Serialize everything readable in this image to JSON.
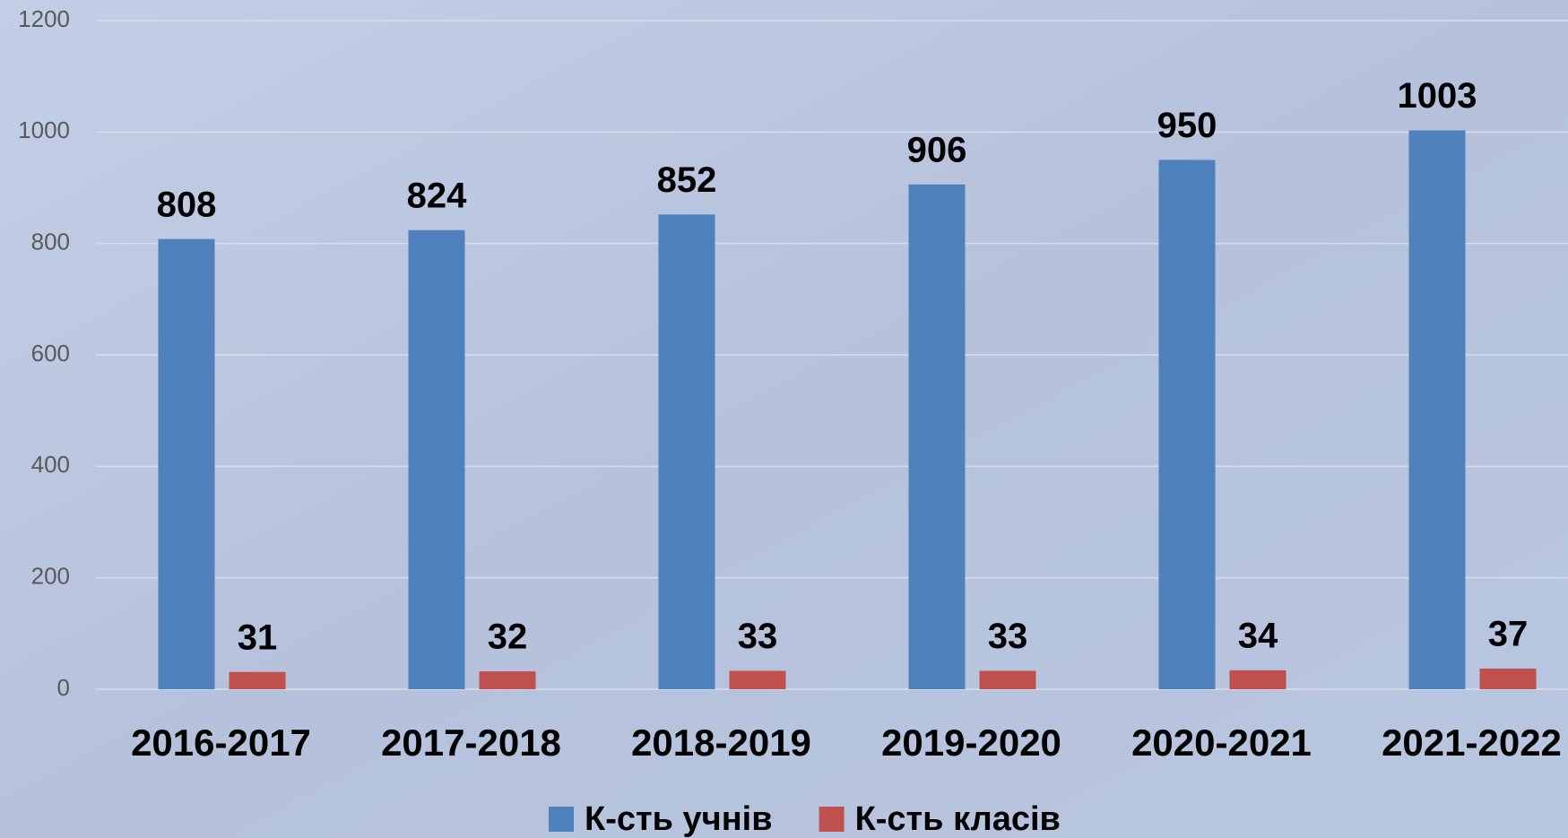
{
  "chart_data": {
    "type": "bar",
    "categories": [
      "2016-2017",
      "2017-2018",
      "2018-2019",
      "2019-2020",
      "2020-2021",
      "2021-2022"
    ],
    "series": [
      {
        "name": "К-сть учнів",
        "color": "#4f81bd",
        "values": [
          808,
          824,
          852,
          906,
          950,
          1003
        ]
      },
      {
        "name": "К-сть класів",
        "color": "#c0504d",
        "values": [
          31,
          32,
          33,
          33,
          34,
          37
        ]
      }
    ],
    "ylim": [
      0,
      1200
    ],
    "yticks": [
      0,
      200,
      400,
      600,
      800,
      1000,
      1200
    ],
    "grid": true,
    "legend": "bottom"
  }
}
